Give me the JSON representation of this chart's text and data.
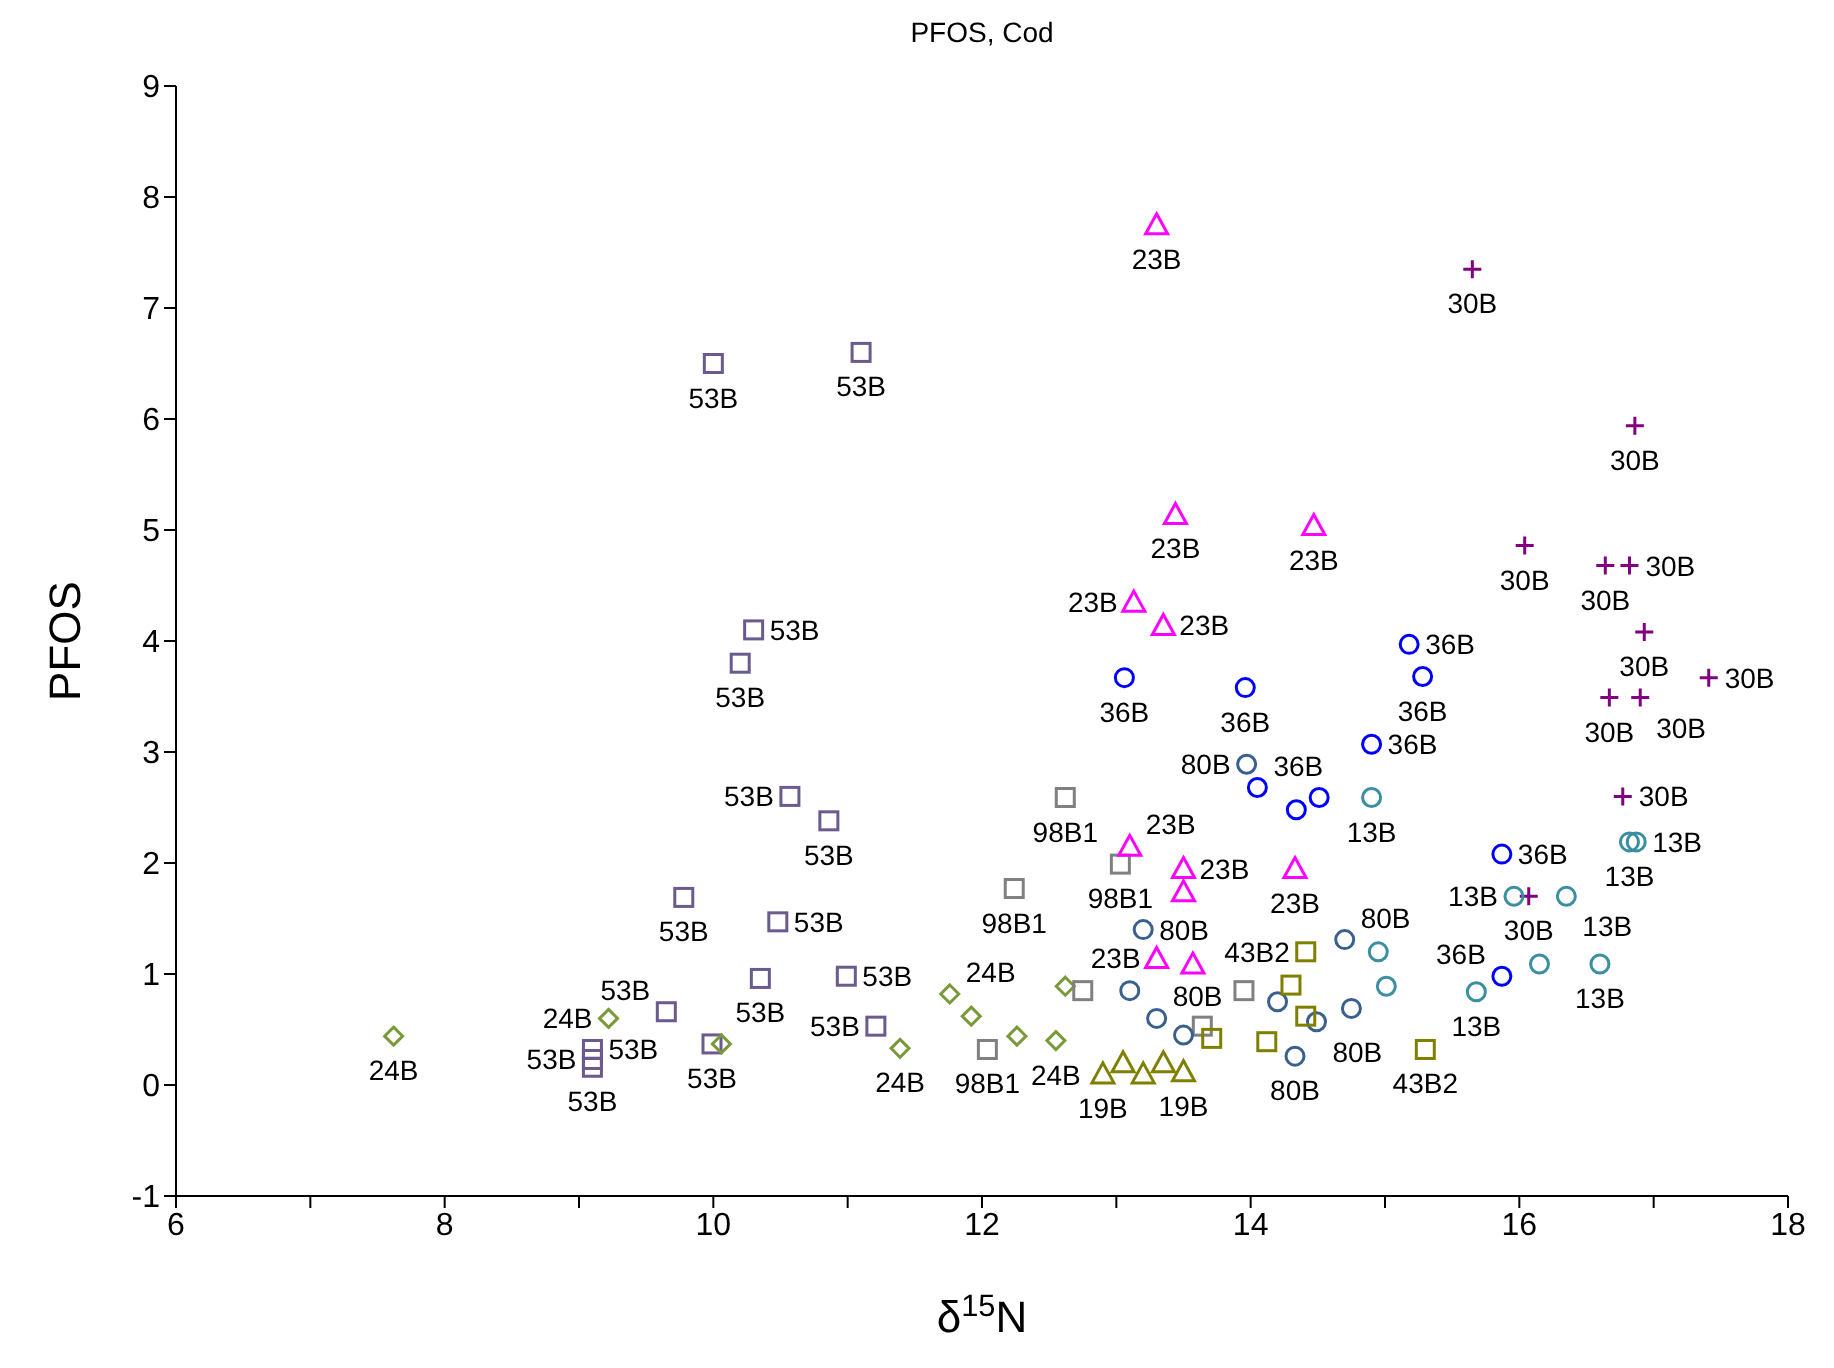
{
  "chart_data": {
    "type": "scatter",
    "title": "PFOS, Cod",
    "xlabel": "δ$^{15}$N",
    "ylabel": "PFOS",
    "xlim": [
      6,
      18
    ],
    "ylim": [
      -1,
      9
    ],
    "xticks": [
      6,
      {
        "value": 7,
        "label": null
      },
      8,
      {
        "value": 9,
        "label": null
      },
      10,
      {
        "value": 11,
        "label": null
      },
      12,
      {
        "value": 13,
        "label": null
      },
      14,
      {
        "value": 15,
        "label": null
      },
      16,
      {
        "value": 17,
        "label": null
      },
      18
    ],
    "yticks": [
      -1,
      0,
      1,
      2,
      3,
      4,
      5,
      6,
      7,
      8,
      9
    ],
    "grid": false,
    "legend": false,
    "series": [
      {
        "name": "53B",
        "color": "#6b5a8e",
        "marker": "square",
        "x": [
          10.0,
          11.1,
          10.2,
          10.3,
          10.57,
          10.86,
          9.78,
          10.48,
          10.35,
          10.99,
          9.65,
          9.99,
          11.21,
          9.1,
          9.1,
          9.1
        ],
        "values": [
          6.5,
          6.6,
          3.8,
          4.1,
          2.6,
          2.38,
          1.69,
          1.47,
          0.96,
          0.98,
          0.66,
          0.37,
          0.53,
          0.32,
          0.23,
          0.16
        ]
      },
      {
        "name": "24B",
        "color": "#7a9a3a",
        "marker": "diamond",
        "x": [
          7.62,
          9.22,
          10.06,
          11.39,
          11.76,
          11.92,
          12.26,
          12.55,
          12.62
        ],
        "values": [
          0.44,
          0.6,
          0.37,
          0.33,
          0.82,
          0.62,
          0.44,
          0.4,
          0.89
        ]
      },
      {
        "name": "98B1",
        "color": "#808080",
        "marker": "square",
        "x": [
          12.62,
          12.24,
          13.03,
          12.04,
          13.64,
          12.75,
          13.95
        ],
        "values": [
          2.59,
          1.77,
          1.99,
          0.32,
          0.53,
          0.85,
          0.85
        ]
      },
      {
        "name": "23B",
        "color": "#ff00ff",
        "marker": "triangle",
        "x": [
          13.3,
          13.44,
          14.47,
          13.13,
          13.35,
          13.1,
          13.5,
          13.5,
          14.33,
          13.3,
          13.57
        ],
        "values": [
          7.75,
          5.14,
          5.04,
          4.35,
          4.14,
          2.15,
          1.95,
          1.74,
          1.95,
          1.14,
          1.09
        ]
      },
      {
        "name": "30B",
        "color": "#800080",
        "marker": "cross",
        "x": [
          15.65,
          16.86,
          16.04,
          16.64,
          16.82,
          16.93,
          16.67,
          16.9,
          17.41,
          16.77,
          16.07
        ],
        "values": [
          7.35,
          5.94,
          4.86,
          4.68,
          4.68,
          4.08,
          3.49,
          3.49,
          3.67,
          2.6,
          1.7
        ]
      },
      {
        "name": "36B",
        "color": "#0000ff",
        "marker": "circle",
        "x": [
          13.06,
          13.96,
          15.18,
          15.28,
          14.9,
          14.05,
          14.34,
          14.51,
          15.87,
          15.87
        ],
        "values": [
          3.67,
          3.58,
          3.97,
          3.68,
          3.07,
          2.68,
          2.48,
          2.59,
          2.08,
          0.98
        ]
      },
      {
        "name": "13B",
        "color": "#3a8fa0",
        "marker": "circle",
        "x": [
          14.9,
          15.96,
          16.35,
          16.82,
          16.87,
          15.68,
          16.15,
          16.6,
          14.95,
          15.01
        ],
        "values": [
          2.59,
          1.7,
          1.7,
          2.19,
          2.19,
          0.84,
          1.09,
          1.09,
          1.2,
          0.89
        ]
      },
      {
        "name": "80B",
        "color": "#3a6090",
        "marker": "circle",
        "x": [
          13.97,
          13.2,
          14.33,
          14.75,
          14.49,
          14.7,
          13.1,
          13.3,
          13.5,
          14.2
        ],
        "values": [
          2.89,
          1.4,
          0.26,
          0.69,
          0.57,
          1.31,
          0.85,
          0.6,
          0.45,
          0.75
        ]
      },
      {
        "name": "43B2",
        "color": "#808000",
        "marker": "square",
        "x": [
          15.3,
          14.41,
          14.12,
          13.71,
          14.41,
          14.3
        ],
        "values": [
          0.32,
          1.2,
          0.39,
          0.42,
          0.62,
          0.9
        ]
      },
      {
        "name": "19B",
        "color": "#808000",
        "marker": "triangle",
        "x": [
          12.9,
          13.05,
          13.2,
          13.35,
          13.5
        ],
        "values": [
          0.1,
          0.2,
          0.1,
          0.2,
          0.12
        ]
      }
    ]
  }
}
